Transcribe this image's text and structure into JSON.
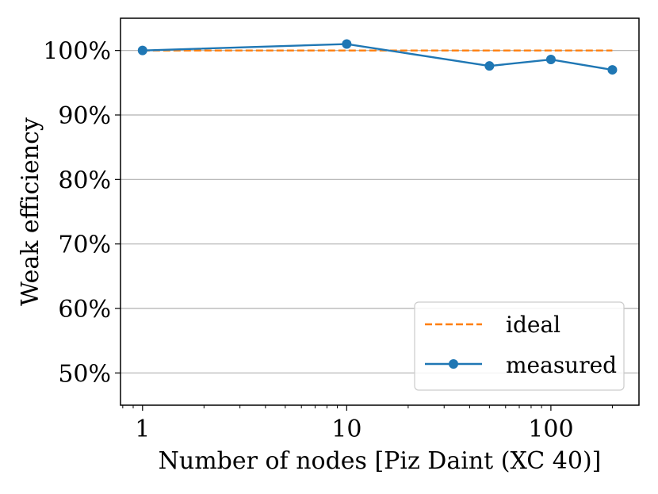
{
  "chart_data": {
    "type": "line",
    "title": "",
    "xlabel": "Number of nodes [Piz Daint (XC 40)]",
    "ylabel": "Weak efficiency",
    "xscale": "log",
    "xlim": [
      0.78,
      270
    ],
    "ylim": [
      45,
      105
    ],
    "grid": "y",
    "xticks": [
      {
        "value": 1,
        "label": "1"
      },
      {
        "value": 10,
        "label": "10"
      },
      {
        "value": 100,
        "label": "100"
      }
    ],
    "yticks": [
      {
        "value": 50,
        "label": "50%"
      },
      {
        "value": 60,
        "label": "60%"
      },
      {
        "value": 70,
        "label": "70%"
      },
      {
        "value": 80,
        "label": "80%"
      },
      {
        "value": 90,
        "label": "90%"
      },
      {
        "value": 100,
        "label": "100%"
      }
    ],
    "series": [
      {
        "name": "ideal",
        "style": "dashed",
        "color": "#ff7f0e",
        "marker": "none",
        "x": [
          1,
          200
        ],
        "y": [
          100,
          100
        ]
      },
      {
        "name": "measured",
        "style": "solid",
        "color": "#1f77b4",
        "marker": "circle",
        "x": [
          1,
          10,
          50,
          100,
          200
        ],
        "y": [
          100,
          101,
          97.6,
          98.6,
          97
        ]
      }
    ],
    "legend": {
      "position": "bottom-right",
      "entries": [
        "ideal",
        "measured"
      ]
    }
  }
}
